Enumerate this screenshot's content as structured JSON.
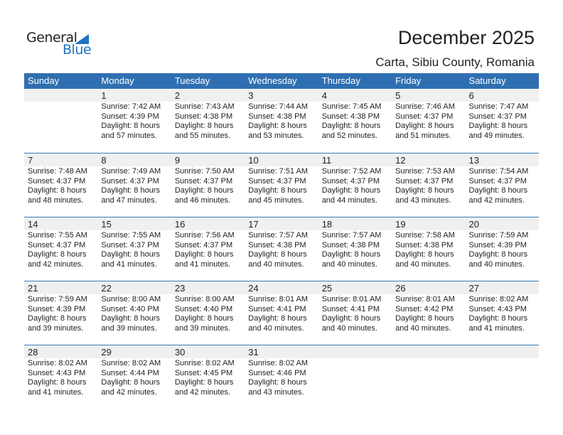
{
  "logo": {
    "general": "General",
    "blue": "Blue"
  },
  "title": "December 2025",
  "location": "Carta, Sibiu County, Romania",
  "colors": {
    "header": "#2f6fb1",
    "logo_blue": "#1f73c0"
  },
  "weekdays": [
    "Sunday",
    "Monday",
    "Tuesday",
    "Wednesday",
    "Thursday",
    "Friday",
    "Saturday"
  ],
  "weeks": [
    [
      null,
      {
        "day": "1",
        "sunrise": "Sunrise: 7:42 AM",
        "sunset": "Sunset: 4:39 PM",
        "daylight": "Daylight: 8 hours",
        "minutes": "and 57 minutes."
      },
      {
        "day": "2",
        "sunrise": "Sunrise: 7:43 AM",
        "sunset": "Sunset: 4:38 PM",
        "daylight": "Daylight: 8 hours",
        "minutes": "and 55 minutes."
      },
      {
        "day": "3",
        "sunrise": "Sunrise: 7:44 AM",
        "sunset": "Sunset: 4:38 PM",
        "daylight": "Daylight: 8 hours",
        "minutes": "and 53 minutes."
      },
      {
        "day": "4",
        "sunrise": "Sunrise: 7:45 AM",
        "sunset": "Sunset: 4:38 PM",
        "daylight": "Daylight: 8 hours",
        "minutes": "and 52 minutes."
      },
      {
        "day": "5",
        "sunrise": "Sunrise: 7:46 AM",
        "sunset": "Sunset: 4:37 PM",
        "daylight": "Daylight: 8 hours",
        "minutes": "and 51 minutes."
      },
      {
        "day": "6",
        "sunrise": "Sunrise: 7:47 AM",
        "sunset": "Sunset: 4:37 PM",
        "daylight": "Daylight: 8 hours",
        "minutes": "and 49 minutes."
      }
    ],
    [
      {
        "day": "7",
        "sunrise": "Sunrise: 7:48 AM",
        "sunset": "Sunset: 4:37 PM",
        "daylight": "Daylight: 8 hours",
        "minutes": "and 48 minutes."
      },
      {
        "day": "8",
        "sunrise": "Sunrise: 7:49 AM",
        "sunset": "Sunset: 4:37 PM",
        "daylight": "Daylight: 8 hours",
        "minutes": "and 47 minutes."
      },
      {
        "day": "9",
        "sunrise": "Sunrise: 7:50 AM",
        "sunset": "Sunset: 4:37 PM",
        "daylight": "Daylight: 8 hours",
        "minutes": "and 46 minutes."
      },
      {
        "day": "10",
        "sunrise": "Sunrise: 7:51 AM",
        "sunset": "Sunset: 4:37 PM",
        "daylight": "Daylight: 8 hours",
        "minutes": "and 45 minutes."
      },
      {
        "day": "11",
        "sunrise": "Sunrise: 7:52 AM",
        "sunset": "Sunset: 4:37 PM",
        "daylight": "Daylight: 8 hours",
        "minutes": "and 44 minutes."
      },
      {
        "day": "12",
        "sunrise": "Sunrise: 7:53 AM",
        "sunset": "Sunset: 4:37 PM",
        "daylight": "Daylight: 8 hours",
        "minutes": "and 43 minutes."
      },
      {
        "day": "13",
        "sunrise": "Sunrise: 7:54 AM",
        "sunset": "Sunset: 4:37 PM",
        "daylight": "Daylight: 8 hours",
        "minutes": "and 42 minutes."
      }
    ],
    [
      {
        "day": "14",
        "sunrise": "Sunrise: 7:55 AM",
        "sunset": "Sunset: 4:37 PM",
        "daylight": "Daylight: 8 hours",
        "minutes": "and 42 minutes."
      },
      {
        "day": "15",
        "sunrise": "Sunrise: 7:55 AM",
        "sunset": "Sunset: 4:37 PM",
        "daylight": "Daylight: 8 hours",
        "minutes": "and 41 minutes."
      },
      {
        "day": "16",
        "sunrise": "Sunrise: 7:56 AM",
        "sunset": "Sunset: 4:37 PM",
        "daylight": "Daylight: 8 hours",
        "minutes": "and 41 minutes."
      },
      {
        "day": "17",
        "sunrise": "Sunrise: 7:57 AM",
        "sunset": "Sunset: 4:38 PM",
        "daylight": "Daylight: 8 hours",
        "minutes": "and 40 minutes."
      },
      {
        "day": "18",
        "sunrise": "Sunrise: 7:57 AM",
        "sunset": "Sunset: 4:38 PM",
        "daylight": "Daylight: 8 hours",
        "minutes": "and 40 minutes."
      },
      {
        "day": "19",
        "sunrise": "Sunrise: 7:58 AM",
        "sunset": "Sunset: 4:38 PM",
        "daylight": "Daylight: 8 hours",
        "minutes": "and 40 minutes."
      },
      {
        "day": "20",
        "sunrise": "Sunrise: 7:59 AM",
        "sunset": "Sunset: 4:39 PM",
        "daylight": "Daylight: 8 hours",
        "minutes": "and 40 minutes."
      }
    ],
    [
      {
        "day": "21",
        "sunrise": "Sunrise: 7:59 AM",
        "sunset": "Sunset: 4:39 PM",
        "daylight": "Daylight: 8 hours",
        "minutes": "and 39 minutes."
      },
      {
        "day": "22",
        "sunrise": "Sunrise: 8:00 AM",
        "sunset": "Sunset: 4:40 PM",
        "daylight": "Daylight: 8 hours",
        "minutes": "and 39 minutes."
      },
      {
        "day": "23",
        "sunrise": "Sunrise: 8:00 AM",
        "sunset": "Sunset: 4:40 PM",
        "daylight": "Daylight: 8 hours",
        "minutes": "and 39 minutes."
      },
      {
        "day": "24",
        "sunrise": "Sunrise: 8:01 AM",
        "sunset": "Sunset: 4:41 PM",
        "daylight": "Daylight: 8 hours",
        "minutes": "and 40 minutes."
      },
      {
        "day": "25",
        "sunrise": "Sunrise: 8:01 AM",
        "sunset": "Sunset: 4:41 PM",
        "daylight": "Daylight: 8 hours",
        "minutes": "and 40 minutes."
      },
      {
        "day": "26",
        "sunrise": "Sunrise: 8:01 AM",
        "sunset": "Sunset: 4:42 PM",
        "daylight": "Daylight: 8 hours",
        "minutes": "and 40 minutes."
      },
      {
        "day": "27",
        "sunrise": "Sunrise: 8:02 AM",
        "sunset": "Sunset: 4:43 PM",
        "daylight": "Daylight: 8 hours",
        "minutes": "and 41 minutes."
      }
    ],
    [
      {
        "day": "28",
        "sunrise": "Sunrise: 8:02 AM",
        "sunset": "Sunset: 4:43 PM",
        "daylight": "Daylight: 8 hours",
        "minutes": "and 41 minutes."
      },
      {
        "day": "29",
        "sunrise": "Sunrise: 8:02 AM",
        "sunset": "Sunset: 4:44 PM",
        "daylight": "Daylight: 8 hours",
        "minutes": "and 42 minutes."
      },
      {
        "day": "30",
        "sunrise": "Sunrise: 8:02 AM",
        "sunset": "Sunset: 4:45 PM",
        "daylight": "Daylight: 8 hours",
        "minutes": "and 42 minutes."
      },
      {
        "day": "31",
        "sunrise": "Sunrise: 8:02 AM",
        "sunset": "Sunset: 4:46 PM",
        "daylight": "Daylight: 8 hours",
        "minutes": "and 43 minutes."
      },
      null,
      null,
      null
    ]
  ]
}
